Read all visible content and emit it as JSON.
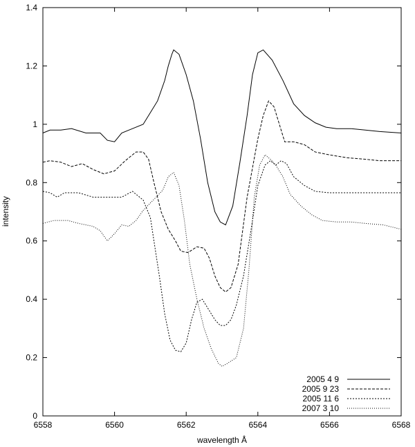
{
  "chart_data": {
    "type": "line",
    "title": "",
    "xlabel": "wavelength Å",
    "ylabel": "intensity",
    "xlim": [
      6558,
      6568
    ],
    "ylim": [
      0,
      1.4
    ],
    "x_ticks": [
      6558,
      6560,
      6562,
      6564,
      6566,
      6568
    ],
    "x_tick_labels": [
      "6558",
      "6560",
      "6562",
      "6564",
      "6566",
      "6568"
    ],
    "y_ticks": [
      0,
      0.2,
      0.4,
      0.6,
      0.8,
      1,
      1.2,
      1.4
    ],
    "y_tick_labels": [
      "0",
      "0.2",
      "0.4",
      "0.6",
      "0.8",
      "1",
      "1.2",
      "1.4"
    ],
    "grid": false,
    "legend_position": "bottom-right",
    "series": [
      {
        "name": "2005  4  9",
        "style": "solid",
        "color": "#000000",
        "points": [
          [
            6558,
            0.97
          ],
          [
            6558.2,
            0.98
          ],
          [
            6558.5,
            0.98
          ],
          [
            6558.8,
            0.985
          ],
          [
            6559.2,
            0.97
          ],
          [
            6559.6,
            0.97
          ],
          [
            6559.8,
            0.945
          ],
          [
            6560,
            0.94
          ],
          [
            6560.2,
            0.97
          ],
          [
            6560.5,
            0.985
          ],
          [
            6560.8,
            1.0
          ],
          [
            6561,
            1.04
          ],
          [
            6561.2,
            1.08
          ],
          [
            6561.4,
            1.15
          ],
          [
            6561.5,
            1.2
          ],
          [
            6561.6,
            1.24
          ],
          [
            6561.65,
            1.255
          ],
          [
            6561.8,
            1.24
          ],
          [
            6562.0,
            1.17
          ],
          [
            6562.2,
            1.08
          ],
          [
            6562.4,
            0.95
          ],
          [
            6562.6,
            0.8
          ],
          [
            6562.8,
            0.7
          ],
          [
            6562.95,
            0.665
          ],
          [
            6563.1,
            0.655
          ],
          [
            6563.3,
            0.72
          ],
          [
            6563.5,
            0.87
          ],
          [
            6563.7,
            1.03
          ],
          [
            6563.85,
            1.17
          ],
          [
            6564,
            1.245
          ],
          [
            6564.15,
            1.255
          ],
          [
            6564.4,
            1.22
          ],
          [
            6564.7,
            1.15
          ],
          [
            6565,
            1.07
          ],
          [
            6565.3,
            1.03
          ],
          [
            6565.6,
            1.005
          ],
          [
            6565.9,
            0.99
          ],
          [
            6566.2,
            0.985
          ],
          [
            6566.6,
            0.985
          ],
          [
            6567,
            0.98
          ],
          [
            6567.4,
            0.975
          ],
          [
            6568,
            0.97
          ]
        ]
      },
      {
        "name": "2005  9 23",
        "style": "dashed",
        "color": "#000000",
        "points": [
          [
            6558,
            0.87
          ],
          [
            6558.2,
            0.875
          ],
          [
            6558.5,
            0.87
          ],
          [
            6558.8,
            0.855
          ],
          [
            6559.1,
            0.865
          ],
          [
            6559.4,
            0.845
          ],
          [
            6559.7,
            0.83
          ],
          [
            6560,
            0.84
          ],
          [
            6560.3,
            0.875
          ],
          [
            6560.6,
            0.905
          ],
          [
            6560.8,
            0.905
          ],
          [
            6560.95,
            0.88
          ],
          [
            6561.1,
            0.8
          ],
          [
            6561.3,
            0.7
          ],
          [
            6561.5,
            0.64
          ],
          [
            6561.7,
            0.6
          ],
          [
            6561.85,
            0.565
          ],
          [
            6562.05,
            0.56
          ],
          [
            6562.3,
            0.58
          ],
          [
            6562.5,
            0.575
          ],
          [
            6562.65,
            0.54
          ],
          [
            6562.8,
            0.48
          ],
          [
            6562.95,
            0.44
          ],
          [
            6563.1,
            0.425
          ],
          [
            6563.25,
            0.44
          ],
          [
            6563.45,
            0.52
          ],
          [
            6563.7,
            0.75
          ],
          [
            6564,
            0.95
          ],
          [
            6564.15,
            1.03
          ],
          [
            6564.3,
            1.08
          ],
          [
            6564.45,
            1.06
          ],
          [
            6564.6,
            1.0
          ],
          [
            6564.75,
            0.94
          ],
          [
            6565,
            0.94
          ],
          [
            6565.3,
            0.93
          ],
          [
            6565.6,
            0.905
          ],
          [
            6566,
            0.895
          ],
          [
            6566.5,
            0.885
          ],
          [
            6567,
            0.88
          ],
          [
            6567.4,
            0.875
          ],
          [
            6568,
            0.875
          ]
        ]
      },
      {
        "name": "2005 11  6",
        "style": "dotted",
        "color": "#000000",
        "points": [
          [
            6558,
            0.77
          ],
          [
            6558.2,
            0.765
          ],
          [
            6558.4,
            0.75
          ],
          [
            6558.6,
            0.765
          ],
          [
            6559,
            0.765
          ],
          [
            6559.4,
            0.75
          ],
          [
            6559.8,
            0.75
          ],
          [
            6560.2,
            0.75
          ],
          [
            6560.5,
            0.77
          ],
          [
            6560.8,
            0.74
          ],
          [
            6561,
            0.68
          ],
          [
            6561.1,
            0.6
          ],
          [
            6561.25,
            0.48
          ],
          [
            6561.4,
            0.35
          ],
          [
            6561.55,
            0.26
          ],
          [
            6561.7,
            0.225
          ],
          [
            6561.85,
            0.22
          ],
          [
            6562.0,
            0.25
          ],
          [
            6562.15,
            0.33
          ],
          [
            6562.3,
            0.39
          ],
          [
            6562.45,
            0.4
          ],
          [
            6562.6,
            0.37
          ],
          [
            6562.8,
            0.33
          ],
          [
            6562.95,
            0.31
          ],
          [
            6563.1,
            0.31
          ],
          [
            6563.25,
            0.33
          ],
          [
            6563.4,
            0.38
          ],
          [
            6563.6,
            0.48
          ],
          [
            6563.8,
            0.63
          ],
          [
            6564.0,
            0.79
          ],
          [
            6564.2,
            0.86
          ],
          [
            6564.35,
            0.875
          ],
          [
            6564.5,
            0.86
          ],
          [
            6564.65,
            0.875
          ],
          [
            6564.8,
            0.865
          ],
          [
            6565.0,
            0.82
          ],
          [
            6565.3,
            0.79
          ],
          [
            6565.6,
            0.77
          ],
          [
            6566,
            0.765
          ],
          [
            6566.5,
            0.765
          ],
          [
            6567,
            0.765
          ],
          [
            6568,
            0.765
          ]
        ]
      },
      {
        "name": "2007  3 10",
        "style": "loose-dotted",
        "color": "#000000",
        "points": [
          [
            6558,
            0.66
          ],
          [
            6558.3,
            0.67
          ],
          [
            6558.7,
            0.67
          ],
          [
            6559.0,
            0.66
          ],
          [
            6559.4,
            0.65
          ],
          [
            6559.6,
            0.635
          ],
          [
            6559.8,
            0.6
          ],
          [
            6560.0,
            0.625
          ],
          [
            6560.2,
            0.655
          ],
          [
            6560.4,
            0.65
          ],
          [
            6560.6,
            0.67
          ],
          [
            6560.8,
            0.705
          ],
          [
            6561.0,
            0.73
          ],
          [
            6561.2,
            0.755
          ],
          [
            6561.35,
            0.775
          ],
          [
            6561.5,
            0.82
          ],
          [
            6561.65,
            0.835
          ],
          [
            6561.8,
            0.79
          ],
          [
            6561.95,
            0.67
          ],
          [
            6562.1,
            0.52
          ],
          [
            6562.3,
            0.4
          ],
          [
            6562.5,
            0.3
          ],
          [
            6562.7,
            0.23
          ],
          [
            6562.9,
            0.18
          ],
          [
            6563.0,
            0.17
          ],
          [
            6563.15,
            0.18
          ],
          [
            6563.4,
            0.2
          ],
          [
            6563.6,
            0.3
          ],
          [
            6563.75,
            0.5
          ],
          [
            6563.9,
            0.75
          ],
          [
            6564.05,
            0.86
          ],
          [
            6564.2,
            0.895
          ],
          [
            6564.35,
            0.88
          ],
          [
            6564.5,
            0.86
          ],
          [
            6564.7,
            0.82
          ],
          [
            6564.9,
            0.76
          ],
          [
            6565.2,
            0.72
          ],
          [
            6565.5,
            0.69
          ],
          [
            6565.8,
            0.67
          ],
          [
            6566.2,
            0.665
          ],
          [
            6566.6,
            0.665
          ],
          [
            6567,
            0.66
          ],
          [
            6567.5,
            0.655
          ],
          [
            6568,
            0.64
          ]
        ]
      }
    ]
  }
}
